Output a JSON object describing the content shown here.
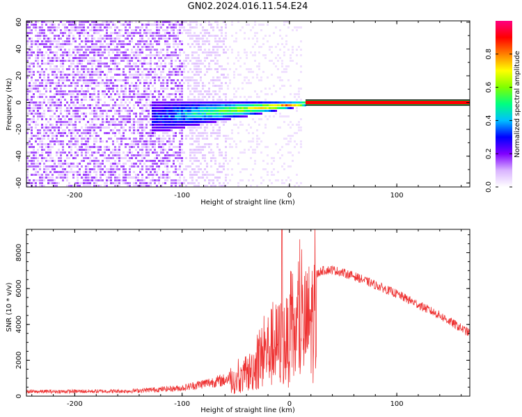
{
  "title": "GN02.2024.016.11.54.E24",
  "chart_data": [
    {
      "type": "heatmap",
      "xlabel": "Height of straight line (km)",
      "ylabel": "Frequency (Hz)",
      "xlim": [
        -245,
        168
      ],
      "ylim": [
        -63,
        61
      ],
      "xticks": [
        -200,
        -100,
        0,
        100
      ],
      "xtick_labels": [
        "-200",
        "-100",
        "0",
        "100"
      ],
      "yticks": [
        -60,
        -40,
        -20,
        0,
        20,
        40,
        60
      ],
      "ytick_labels": [
        "-60",
        "-40",
        "-20",
        "0",
        "20",
        "40",
        "60"
      ],
      "colorbar": {
        "label": "Normalized spectral amplitude",
        "range": [
          0,
          1
        ],
        "ticks": [
          0.0,
          0.2,
          0.4,
          0.6,
          0.8
        ],
        "tick_labels": [
          "0.0",
          "0.2",
          "0.4",
          "0.6",
          "0.8"
        ],
        "colors": [
          "#ffffff",
          "#d9b3ff",
          "#8000ff",
          "#0000ff",
          "#00bfff",
          "#00ff80",
          "#80ff00",
          "#ffff00",
          "#ff8000",
          "#ff0000",
          "#ff0080"
        ]
      },
      "description_values": {
        "noise_region_x": [
          -245,
          -60
        ],
        "signal_onset_x": -130,
        "constant_line_x": [
          15,
          168
        ],
        "constant_line_frequency": 0,
        "constant_line_amplitude": 0.9
      }
    },
    {
      "type": "line",
      "xlabel": "Height of straight line (km)",
      "ylabel": "SNR (10 * v/v)",
      "xlim": [
        -245,
        168
      ],
      "ylim": [
        0,
        9300
      ],
      "xticks": [
        -200,
        -100,
        0,
        100
      ],
      "xtick_labels": [
        "-200",
        "-100",
        "0",
        "100"
      ],
      "yticks": [
        0,
        2000,
        4000,
        6000,
        8000
      ],
      "ytick_labels": [
        "0",
        "2000",
        "4000",
        "6000",
        "8000"
      ],
      "series_color": "#ee3333",
      "envelope": {
        "x": [
          -245,
          -150,
          -100,
          -80,
          -60,
          -50,
          -40,
          -30,
          -20,
          -10,
          0,
          10,
          20,
          30,
          40,
          60,
          80,
          100,
          120,
          140,
          168
        ],
        "y": [
          250,
          280,
          450,
          700,
          900,
          1200,
          1800,
          2800,
          4000,
          4500,
          4700,
          5500,
          6500,
          7000,
          7050,
          6700,
          6200,
          5700,
          5100,
          4500,
          3500
        ]
      },
      "spike": {
        "x": -7,
        "y": 9300
      }
    }
  ]
}
